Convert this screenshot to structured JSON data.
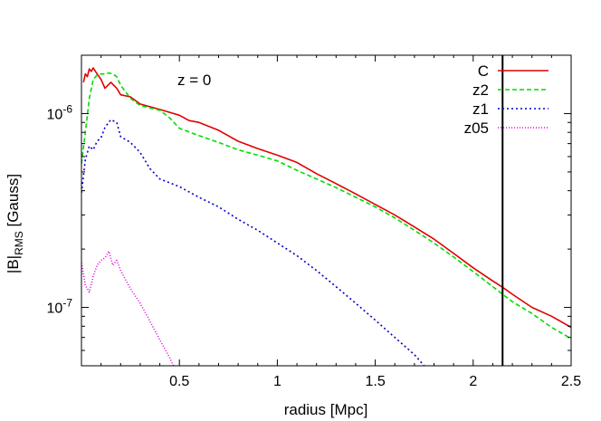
{
  "chart_data": {
    "type": "line",
    "annotation": "z = 0",
    "xlabel": "radius [Mpc]",
    "ylabel_main": "|B|",
    "ylabel_sub": "RMS",
    "ylabel_tail": " [Gauss]",
    "xlim": [
      0,
      2.5
    ],
    "ylim": [
      5e-08,
      2e-06
    ],
    "yscale": "log",
    "xticks": [
      0.5,
      1,
      1.5,
      2,
      2.5
    ],
    "xtick_labels": [
      "0.5",
      "1",
      "1.5",
      "2",
      "2.5"
    ],
    "yticks": [
      1e-07,
      1e-06
    ],
    "ytick_base": "10",
    "ytick_exps": [
      "-7",
      "-6"
    ],
    "vline_x": 2.15,
    "legend_position": "top-right",
    "grid": false,
    "series": [
      {
        "name": "C",
        "color": "#e00000",
        "dash": "solid",
        "points": [
          [
            0.01,
            1.45e-06
          ],
          [
            0.02,
            1.6e-06
          ],
          [
            0.03,
            1.55e-06
          ],
          [
            0.04,
            1.7e-06
          ],
          [
            0.05,
            1.65e-06
          ],
          [
            0.06,
            1.72e-06
          ],
          [
            0.08,
            1.6e-06
          ],
          [
            0.1,
            1.5e-06
          ],
          [
            0.12,
            1.35e-06
          ],
          [
            0.15,
            1.45e-06
          ],
          [
            0.18,
            1.35e-06
          ],
          [
            0.2,
            1.25e-06
          ],
          [
            0.25,
            1.22e-06
          ],
          [
            0.3,
            1.12e-06
          ],
          [
            0.4,
            1.05e-06
          ],
          [
            0.5,
            9.8e-07
          ],
          [
            0.55,
            9.2e-07
          ],
          [
            0.6,
            9e-07
          ],
          [
            0.7,
            8.2e-07
          ],
          [
            0.8,
            7.2e-07
          ],
          [
            0.9,
            6.6e-07
          ],
          [
            1.0,
            6.1e-07
          ],
          [
            1.1,
            5.6e-07
          ],
          [
            1.2,
            4.9e-07
          ],
          [
            1.3,
            4.35e-07
          ],
          [
            1.4,
            3.85e-07
          ],
          [
            1.5,
            3.4e-07
          ],
          [
            1.6,
            3e-07
          ],
          [
            1.7,
            2.6e-07
          ],
          [
            1.8,
            2.25e-07
          ],
          [
            1.9,
            1.9e-07
          ],
          [
            2.0,
            1.6e-07
          ],
          [
            2.1,
            1.37e-07
          ],
          [
            2.15,
            1.27e-07
          ],
          [
            2.2,
            1.17e-07
          ],
          [
            2.3,
            1e-07
          ],
          [
            2.4,
            9e-08
          ],
          [
            2.5,
            7.9e-08
          ]
        ]
      },
      {
        "name": "z2",
        "color": "#00dd00",
        "dash": "dashed",
        "points": [
          [
            0.0,
            5.5e-07
          ],
          [
            0.02,
            8e-07
          ],
          [
            0.04,
            1.2e-06
          ],
          [
            0.06,
            1.5e-06
          ],
          [
            0.08,
            1.58e-06
          ],
          [
            0.1,
            1.6e-06
          ],
          [
            0.12,
            1.6e-06
          ],
          [
            0.14,
            1.62e-06
          ],
          [
            0.16,
            1.6e-06
          ],
          [
            0.18,
            1.55e-06
          ],
          [
            0.2,
            1.4e-06
          ],
          [
            0.25,
            1.2e-06
          ],
          [
            0.3,
            1.1e-06
          ],
          [
            0.35,
            1.07e-06
          ],
          [
            0.4,
            1.04e-06
          ],
          [
            0.45,
            9.5e-07
          ],
          [
            0.5,
            8.4e-07
          ],
          [
            0.6,
            7.7e-07
          ],
          [
            0.7,
            7.1e-07
          ],
          [
            0.8,
            6.5e-07
          ],
          [
            0.9,
            6.1e-07
          ],
          [
            1.0,
            5.7e-07
          ],
          [
            1.1,
            5.1e-07
          ],
          [
            1.2,
            4.6e-07
          ],
          [
            1.3,
            4.15e-07
          ],
          [
            1.4,
            3.7e-07
          ],
          [
            1.5,
            3.3e-07
          ],
          [
            1.6,
            2.9e-07
          ],
          [
            1.7,
            2.5e-07
          ],
          [
            1.8,
            2.15e-07
          ],
          [
            1.9,
            1.82e-07
          ],
          [
            2.0,
            1.53e-07
          ],
          [
            2.1,
            1.28e-07
          ],
          [
            2.2,
            1.07e-07
          ],
          [
            2.3,
            9.3e-08
          ],
          [
            2.4,
            7.9e-08
          ],
          [
            2.5,
            6.9e-08
          ]
        ]
      },
      {
        "name": "z1",
        "color": "#0000cc",
        "dash": "dotted",
        "points": [
          [
            0.0,
            3.9e-07
          ],
          [
            0.02,
            5.8e-07
          ],
          [
            0.04,
            6.8e-07
          ],
          [
            0.06,
            6.5e-07
          ],
          [
            0.08,
            7.2e-07
          ],
          [
            0.1,
            7.5e-07
          ],
          [
            0.12,
            8.5e-07
          ],
          [
            0.15,
            9.3e-07
          ],
          [
            0.18,
            9e-07
          ],
          [
            0.2,
            7.6e-07
          ],
          [
            0.25,
            7.1e-07
          ],
          [
            0.3,
            6.3e-07
          ],
          [
            0.35,
            5.2e-07
          ],
          [
            0.4,
            4.6e-07
          ],
          [
            0.5,
            4.2e-07
          ],
          [
            0.6,
            3.7e-07
          ],
          [
            0.7,
            3.3e-07
          ],
          [
            0.8,
            2.85e-07
          ],
          [
            0.9,
            2.5e-07
          ],
          [
            1.0,
            2.15e-07
          ],
          [
            1.1,
            1.85e-07
          ],
          [
            1.2,
            1.55e-07
          ],
          [
            1.3,
            1.28e-07
          ],
          [
            1.4,
            1.05e-07
          ],
          [
            1.5,
            8.6e-08
          ],
          [
            1.6,
            7e-08
          ],
          [
            1.7,
            5.7e-08
          ],
          [
            1.75,
            5e-08
          ]
        ]
      },
      {
        "name": "z05",
        "color": "#e000e0",
        "dash": "dotted-fine",
        "points": [
          [
            0.0,
            1.7e-07
          ],
          [
            0.02,
            1.3e-07
          ],
          [
            0.04,
            1.2e-07
          ],
          [
            0.06,
            1.45e-07
          ],
          [
            0.08,
            1.65e-07
          ],
          [
            0.1,
            1.75e-07
          ],
          [
            0.12,
            1.8e-07
          ],
          [
            0.14,
            1.95e-07
          ],
          [
            0.16,
            1.65e-07
          ],
          [
            0.18,
            1.75e-07
          ],
          [
            0.2,
            1.55e-07
          ],
          [
            0.25,
            1.25e-07
          ],
          [
            0.3,
            1.05e-07
          ],
          [
            0.35,
            8.5e-08
          ],
          [
            0.4,
            6.8e-08
          ],
          [
            0.45,
            5.5e-08
          ],
          [
            0.47,
            5e-08
          ]
        ]
      }
    ]
  }
}
